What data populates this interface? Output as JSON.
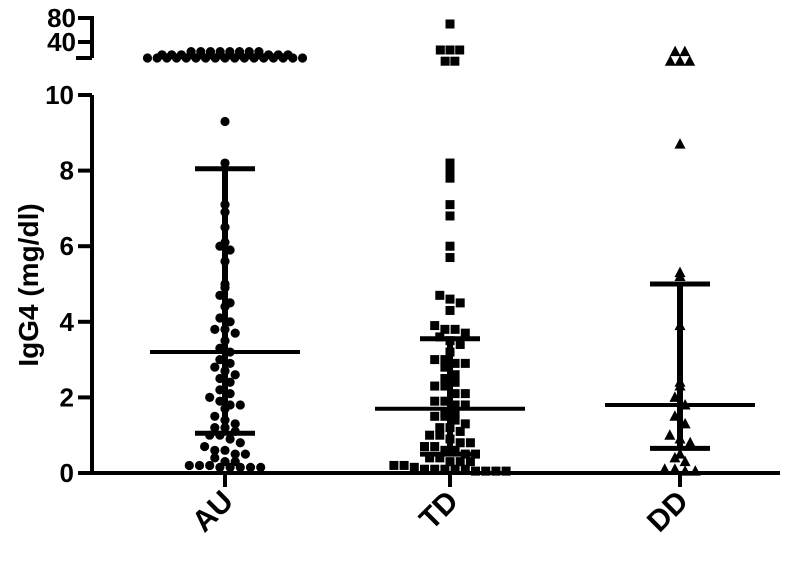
{
  "chart_data": {
    "type": "scatter",
    "title": "",
    "xlabel": "",
    "ylabel": "IgG4 (mg/dl)",
    "ylim": [
      0,
      10
    ],
    "y_ticks": [
      0,
      2,
      4,
      6,
      8,
      10
    ],
    "y_break_ticks": [
      40,
      80
    ],
    "grid": false,
    "categories": [
      "AU",
      "TD",
      "DD"
    ],
    "series": [
      {
        "category": "AU",
        "marker": "circle",
        "median": 3.2,
        "iqr": [
          1.05,
          8.05
        ],
        "above_break": [
          {
            "y": 34,
            "n": 8
          },
          {
            "y": 32,
            "n": 14
          },
          {
            "y": 30,
            "n": 17
          }
        ],
        "values": [
          9.3,
          8.2,
          7.1,
          6.9,
          6.5,
          6.1,
          6.0,
          5.9,
          5.6,
          5.0,
          4.9,
          4.7,
          4.5,
          4.4,
          4.1,
          4.0,
          3.8,
          3.8,
          3.7,
          3.5,
          3.3,
          3.2,
          3.0,
          2.9,
          2.8,
          2.7,
          2.6,
          2.5,
          2.4,
          2.2,
          2.1,
          2.0,
          1.9,
          1.8,
          1.8,
          1.7,
          1.5,
          1.4,
          1.3,
          1.2,
          1.2,
          1.1,
          1.0,
          1.0,
          0.9,
          0.8,
          0.7,
          0.6,
          0.6,
          0.5,
          0.5,
          0.4,
          0.3,
          0.3,
          0.2,
          0.2,
          0.2,
          0.15,
          0.15,
          0.15,
          0.15,
          0.15
        ]
      },
      {
        "category": "TD",
        "marker": "square",
        "median": 1.7,
        "iqr": [
          0.5,
          3.55
        ],
        "above_break": [
          {
            "y": 70,
            "n": 1
          },
          {
            "y": 35,
            "n": 3
          },
          {
            "y": 28,
            "n": 2
          }
        ],
        "values": [
          8.2,
          8.0,
          7.8,
          7.1,
          6.8,
          6.0,
          5.7,
          4.7,
          4.6,
          4.5,
          4.3,
          3.9,
          3.8,
          3.8,
          3.7,
          3.6,
          3.5,
          3.4,
          3.2,
          3.0,
          3.0,
          2.9,
          2.9,
          2.8,
          2.6,
          2.5,
          2.4,
          2.3,
          2.3,
          2.1,
          2.1,
          1.9,
          1.9,
          1.8,
          1.8,
          1.6,
          1.6,
          1.5,
          1.5,
          1.4,
          1.3,
          1.2,
          1.2,
          1.1,
          1.0,
          1.0,
          0.9,
          0.8,
          0.8,
          0.7,
          0.7,
          0.6,
          0.6,
          0.5,
          0.5,
          0.4,
          0.4,
          0.3,
          0.3,
          0.3,
          0.2,
          0.2,
          0.15,
          0.1,
          0.1,
          0.1,
          0.1,
          0.1,
          0.05,
          0.05,
          0.05,
          0.05
        ]
      },
      {
        "category": "DD",
        "marker": "triangle",
        "median": 1.8,
        "iqr": [
          0.65,
          5.0
        ],
        "above_break": [
          {
            "y": 34,
            "n": 2
          },
          {
            "y": 28,
            "n": 3
          }
        ],
        "values": [
          8.7,
          5.3,
          5.2,
          3.9,
          2.4,
          2.3,
          2.0,
          1.8,
          1.5,
          1.3,
          1.0,
          0.9,
          0.8,
          0.5,
          0.4,
          0.3,
          0.1,
          0.1,
          0.05,
          0.05
        ]
      }
    ]
  }
}
